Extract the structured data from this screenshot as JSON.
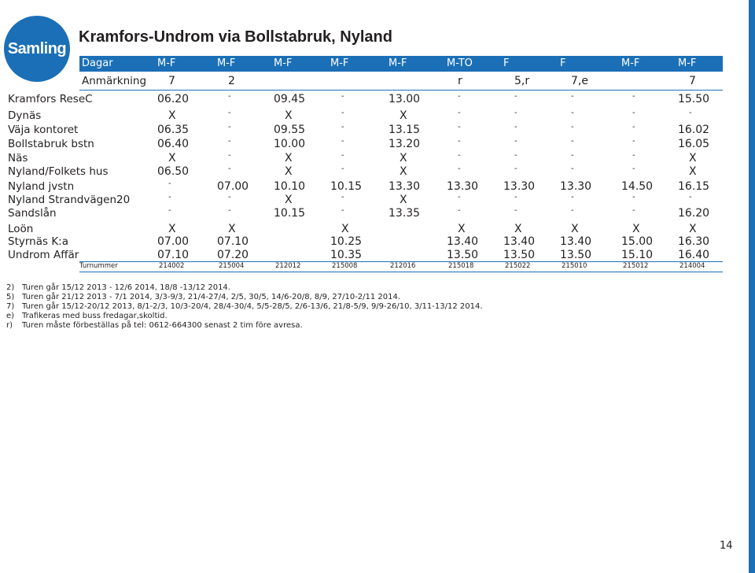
{
  "logo_text": "Samling",
  "title": "Kramfors-Undrom via Bollstabruk, Nyland",
  "colors": {
    "accent": "#1b6fb7",
    "text": "#231f20"
  },
  "header": {
    "days_label": "Dagar",
    "days": [
      "M-F",
      "M-F",
      "M-F",
      "M-F",
      "M-F",
      "M-TO",
      "F",
      "F",
      "M-F",
      "M-F"
    ],
    "remarks_label": "Anmärkning",
    "remarks": [
      "7",
      "2",
      "",
      "",
      "",
      "r",
      "5,r",
      "7,e",
      "",
      "7"
    ]
  },
  "rows": [
    {
      "stop": "Kramfors ReseC",
      "times": [
        "06.20",
        "-",
        "09.45",
        "-",
        "13.00",
        "-",
        "-",
        "-",
        "-",
        "15.50"
      ]
    },
    {
      "stop": "Dynäs",
      "times": [
        "X",
        "-",
        "X",
        "-",
        "X",
        "-",
        "-",
        "-",
        "-",
        "-"
      ]
    },
    {
      "stop": "Väja kontoret",
      "times": [
        "06.35",
        "-",
        "09.55",
        "-",
        "13.15",
        "-",
        "-",
        "-",
        "-",
        "16.02"
      ]
    },
    {
      "stop": "Bollstabruk bstn",
      "times": [
        "06.40",
        "-",
        "10.00",
        "-",
        "13.20",
        "-",
        "-",
        "-",
        "-",
        "16.05"
      ]
    },
    {
      "stop": "Näs",
      "times": [
        "X",
        "-",
        "X",
        "-",
        "X",
        "-",
        "-",
        "-",
        "-",
        "X"
      ]
    },
    {
      "stop": "Nyland/Folkets hus",
      "times": [
        "06.50",
        "-",
        "X",
        "-",
        "X",
        "-",
        "-",
        "-",
        "-",
        "X"
      ]
    },
    {
      "stop": "Nyland jvstn",
      "times": [
        "-",
        "07.00",
        "10.10",
        "10.15",
        "13.30",
        "13.30",
        "13.30",
        "13.30",
        "14.50",
        "16.15"
      ]
    },
    {
      "stop": "Nyland Strandvägen20",
      "times": [
        "-",
        "-",
        "X",
        "-",
        "X",
        "-",
        "-",
        "-",
        "-",
        "-"
      ]
    },
    {
      "stop": "Sandslån",
      "times": [
        "-",
        "-",
        "10.15",
        "-",
        "13.35",
        "-",
        "-",
        "-",
        "-",
        "16.20"
      ]
    },
    {
      "stop": "Loön",
      "times": [
        "X",
        "X",
        "",
        "X",
        "",
        "X",
        "X",
        "X",
        "X",
        "X"
      ]
    },
    {
      "stop": "Styrnäs K:a",
      "times": [
        "07.00",
        "07.10",
        "",
        "10.25",
        "",
        "13.40",
        "13.40",
        "13.40",
        "15.00",
        "16.30"
      ]
    },
    {
      "stop": "Undrom Affär",
      "times": [
        "07.10",
        "07.20",
        "",
        "10.35",
        "",
        "13.50",
        "13.50",
        "13.50",
        "15.10",
        "16.40"
      ]
    }
  ],
  "turnummer_label": "Turnummer",
  "turnummer": [
    "214002",
    "215004",
    "212012",
    "215008",
    "212016",
    "215018",
    "215022",
    "215010",
    "215012",
    "214004"
  ],
  "notes": [
    {
      "key": "2)",
      "text": "Turen går 15/12 2013 - 12/6 2014, 18/8 -13/12 2014."
    },
    {
      "key": "5)",
      "text": "Turen går 21/12 2013 - 7/1 2014, 3/3-9/3, 21/4-27/4, 2/5, 30/5, 14/6-20/8, 8/9, 27/10-2/11 2014."
    },
    {
      "key": "7)",
      "text": "Turen går 15/12-20/12 2013, 8/1-2/3, 10/3-20/4, 28/4-30/4, 5/5-28/5, 2/6-13/6, 21/8-5/9, 9/9-26/10, 3/11-13/12 2014."
    },
    {
      "key": "e)",
      "text": "Trafikeras med buss fredagar,skoltid."
    },
    {
      "key": "r)",
      "text": "Turen måste förbeställas på tel: 0612-664300 senast 2 tim före avresa."
    }
  ],
  "page_number": "14"
}
